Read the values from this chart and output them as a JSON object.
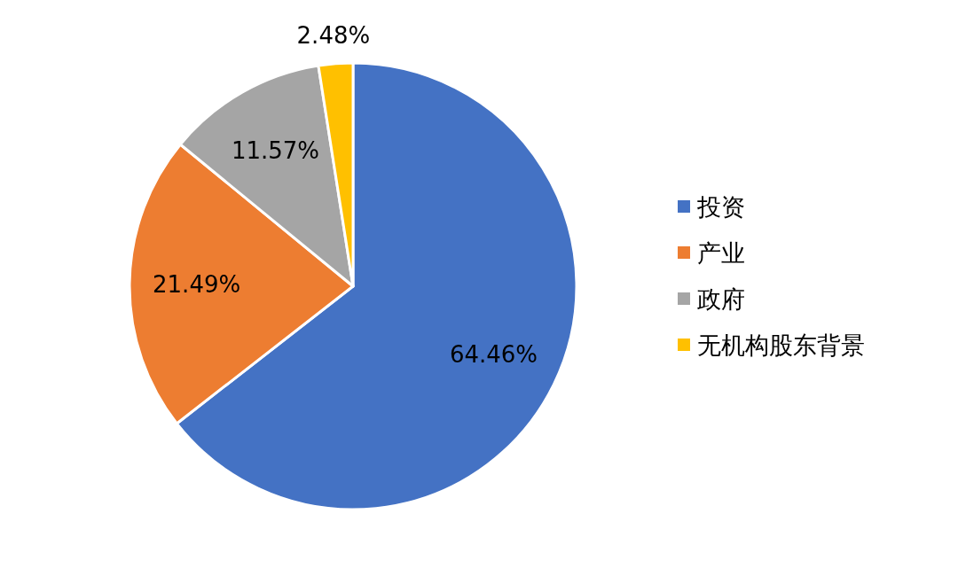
{
  "chart_data": {
    "type": "pie",
    "categories": [
      "投资",
      "产业",
      "政府",
      "无机构股东背景"
    ],
    "values": [
      64.46,
      21.49,
      11.57,
      2.48
    ],
    "colors": [
      "#4472c4",
      "#ed7d31",
      "#a5a5a5",
      "#ffc000"
    ],
    "value_labels": [
      "64.46%",
      "21.49%",
      "11.57%",
      "2.48%"
    ],
    "legend": "right"
  }
}
